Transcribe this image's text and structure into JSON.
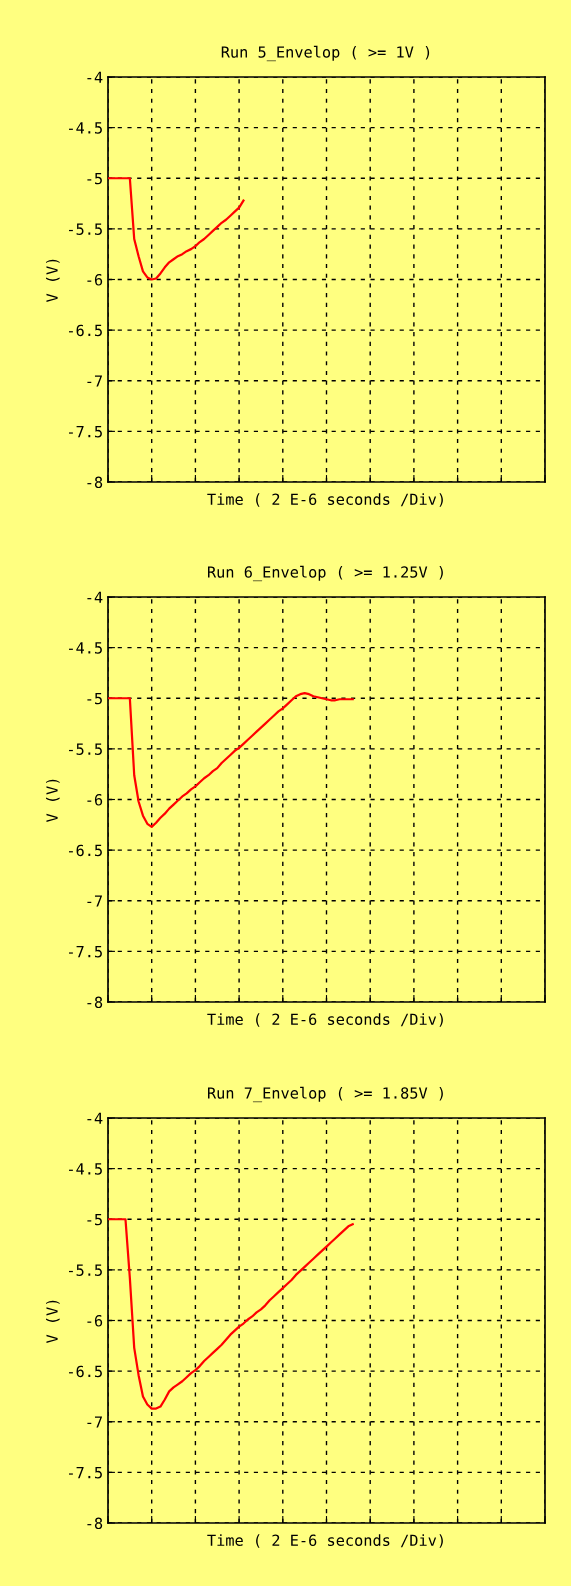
{
  "chart_data": [
    {
      "type": "line",
      "title": "Run 5_Envelop ( >= 1V )",
      "xlabel": "Time ( 2 E-6 seconds /Div)",
      "ylabel": "V (V)",
      "ylim": [
        -8,
        -4
      ],
      "yticks": [
        -8,
        -7.5,
        -7,
        -6.5,
        -6,
        -5.5,
        -5,
        -4.5,
        -4
      ],
      "grid": true,
      "tick_labels": "y",
      "categories": [
        null,
        null,
        null,
        null,
        null,
        null,
        null,
        null,
        null,
        null,
        null,
        null,
        null,
        null,
        null,
        null,
        null,
        null,
        null,
        null,
        null,
        null,
        null,
        null,
        null,
        null,
        null,
        null,
        null,
        null,
        null,
        null,
        null,
        null,
        null,
        null,
        null,
        null,
        null,
        null,
        null,
        null,
        null,
        null,
        null,
        null,
        null,
        null,
        null,
        null,
        null,
        null,
        null,
        null,
        null,
        null,
        null,
        null,
        null,
        null,
        null,
        null,
        null,
        null,
        null,
        null,
        null,
        null,
        null,
        null,
        null,
        null,
        null,
        null,
        null,
        null,
        null,
        null,
        null,
        null,
        null,
        null,
        null,
        null,
        null,
        null,
        null,
        null,
        null,
        null,
        null,
        null,
        null,
        null,
        null,
        null,
        null,
        null,
        null,
        null,
        null
      ],
      "series": [
        {
          "color": "#ff0000",
          "values": [
            -5,
            -5,
            -5,
            -5,
            -5,
            -5,
            -5.6,
            -5.77,
            -5.92,
            -5.98,
            -6.0,
            -5.99,
            -5.94,
            -5.88,
            -5.83,
            -5.8,
            -5.77,
            -5.75,
            -5.72,
            -5.7,
            -5.67,
            -5.63,
            -5.6,
            -5.56,
            -5.52,
            -5.48,
            -5.44,
            -5.41,
            -5.37,
            -5.33,
            -5.29,
            -5.22,
            null,
            null,
            null,
            null,
            null,
            null,
            null,
            null,
            null,
            null,
            null,
            null,
            null,
            null,
            null,
            null,
            null,
            null,
            null,
            null,
            null,
            null,
            null,
            null,
            null,
            null,
            null,
            null,
            null,
            null,
            null,
            null,
            null,
            null,
            null,
            null,
            null,
            null,
            null,
            null,
            null,
            null,
            null,
            null,
            null,
            null,
            null,
            null,
            null,
            null,
            null,
            null,
            null,
            null,
            null,
            null,
            null,
            null,
            null,
            null,
            null,
            null,
            null,
            null,
            null,
            null,
            null,
            null,
            null
          ]
        }
      ]
    },
    {
      "type": "line",
      "title": "Run 6_Envelop ( >= 1.25V )",
      "xlabel": "Time ( 2 E-6 seconds /Div)",
      "ylabel": "V (V)",
      "ylim": [
        -8,
        -4
      ],
      "yticks": [
        -8,
        -7.5,
        -7,
        -6.5,
        -6,
        -5.5,
        -5,
        -4.5,
        -4
      ],
      "grid": true,
      "tick_labels": "y",
      "categories": [
        null,
        null,
        null,
        null,
        null,
        null,
        null,
        null,
        null,
        null,
        null,
        null,
        null,
        null,
        null,
        null,
        null,
        null,
        null,
        null,
        null,
        null,
        null,
        null,
        null,
        null,
        null,
        null,
        null,
        null,
        null,
        null,
        null,
        null,
        null,
        null,
        null,
        null,
        null,
        null,
        null,
        null,
        null,
        null,
        null,
        null,
        null,
        null,
        null,
        null,
        null,
        null,
        null,
        null,
        null,
        null,
        null,
        null,
        null,
        null,
        null,
        null,
        null,
        null,
        null,
        null,
        null,
        null,
        null,
        null,
        null,
        null,
        null,
        null,
        null,
        null,
        null,
        null,
        null,
        null,
        null,
        null,
        null,
        null,
        null,
        null,
        null,
        null,
        null,
        null,
        null,
        null,
        null,
        null,
        null,
        null,
        null,
        null,
        null,
        null,
        null
      ],
      "series": [
        {
          "color": "#ff0000",
          "values": [
            -5,
            -5,
            -5,
            -5,
            -5,
            -5,
            -5.76,
            -6.02,
            -6.16,
            -6.24,
            -6.27,
            -6.23,
            -6.18,
            -6.14,
            -6.09,
            -6.05,
            -6.01,
            -5.97,
            -5.94,
            -5.9,
            -5.87,
            -5.83,
            -5.79,
            -5.76,
            -5.72,
            -5.69,
            -5.64,
            -5.6,
            -5.56,
            -5.52,
            -5.49,
            -5.45,
            -5.41,
            -5.37,
            -5.33,
            -5.29,
            -5.25,
            -5.21,
            -5.17,
            -5.13,
            -5.1,
            -5.06,
            -5.02,
            -4.98,
            -4.96,
            -4.95,
            -4.96,
            -4.98,
            -4.99,
            -5.0,
            -5.01,
            -5.02,
            -5.02,
            -5.01,
            -5.01,
            -5.01,
            -5.01,
            null,
            null,
            null,
            null,
            null,
            null,
            null,
            null,
            null,
            null,
            null,
            null,
            null,
            null,
            null,
            null,
            null,
            null,
            null,
            null,
            null,
            null,
            null,
            null,
            null,
            null,
            null,
            null,
            null,
            null,
            null,
            null,
            null,
            null,
            null,
            null,
            null,
            null,
            null,
            null,
            null,
            null,
            null,
            null
          ]
        }
      ]
    },
    {
      "type": "line",
      "title": "Run 7_Envelop ( >= 1.85V )",
      "xlabel": "Time ( 2 E-6 seconds /Div)",
      "ylabel": "V (V)",
      "ylim": [
        -8,
        -4
      ],
      "yticks": [
        -8,
        -7.5,
        -7,
        -6.5,
        -6,
        -5.5,
        -5,
        -4.5,
        -4
      ],
      "grid": true,
      "tick_labels": "y",
      "categories": [
        null,
        null,
        null,
        null,
        null,
        null,
        null,
        null,
        null,
        null,
        null,
        null,
        null,
        null,
        null,
        null,
        null,
        null,
        null,
        null,
        null,
        null,
        null,
        null,
        null,
        null,
        null,
        null,
        null,
        null,
        null,
        null,
        null,
        null,
        null,
        null,
        null,
        null,
        null,
        null,
        null,
        null,
        null,
        null,
        null,
        null,
        null,
        null,
        null,
        null,
        null,
        null,
        null,
        null,
        null,
        null,
        null,
        null,
        null,
        null,
        null,
        null,
        null,
        null,
        null,
        null,
        null,
        null,
        null,
        null,
        null,
        null,
        null,
        null,
        null,
        null,
        null,
        null,
        null,
        null,
        null,
        null,
        null,
        null,
        null,
        null,
        null,
        null,
        null,
        null,
        null,
        null,
        null,
        null,
        null,
        null,
        null,
        null,
        null,
        null,
        null
      ],
      "series": [
        {
          "color": "#ff0000",
          "values": [
            -5,
            -5,
            -5,
            -5,
            -5,
            -5.58,
            -6.27,
            -6.54,
            -6.75,
            -6.83,
            -6.87,
            -6.87,
            -6.85,
            -6.78,
            -6.7,
            -6.66,
            -6.63,
            -6.6,
            -6.56,
            -6.52,
            -6.49,
            -6.45,
            -6.4,
            -6.36,
            -6.32,
            -6.28,
            -6.24,
            -6.19,
            -6.14,
            -6.1,
            -6.06,
            -6.03,
            -5.99,
            -5.96,
            -5.92,
            -5.89,
            -5.85,
            -5.8,
            -5.76,
            -5.72,
            -5.68,
            -5.64,
            -5.6,
            -5.55,
            -5.51,
            -5.47,
            -5.43,
            -5.39,
            -5.35,
            -5.31,
            -5.27,
            -5.23,
            -5.19,
            -5.15,
            -5.11,
            -5.07,
            -5.05,
            null,
            null,
            null,
            null,
            null,
            null,
            null,
            null,
            null,
            null,
            null,
            null,
            null,
            null,
            null,
            null,
            null,
            null,
            null,
            null,
            null,
            null,
            null,
            null,
            null,
            null,
            null,
            null,
            null,
            null,
            null,
            null,
            null,
            null,
            null,
            null,
            null,
            null,
            null,
            null,
            null,
            null,
            null,
            null
          ]
        }
      ]
    }
  ]
}
